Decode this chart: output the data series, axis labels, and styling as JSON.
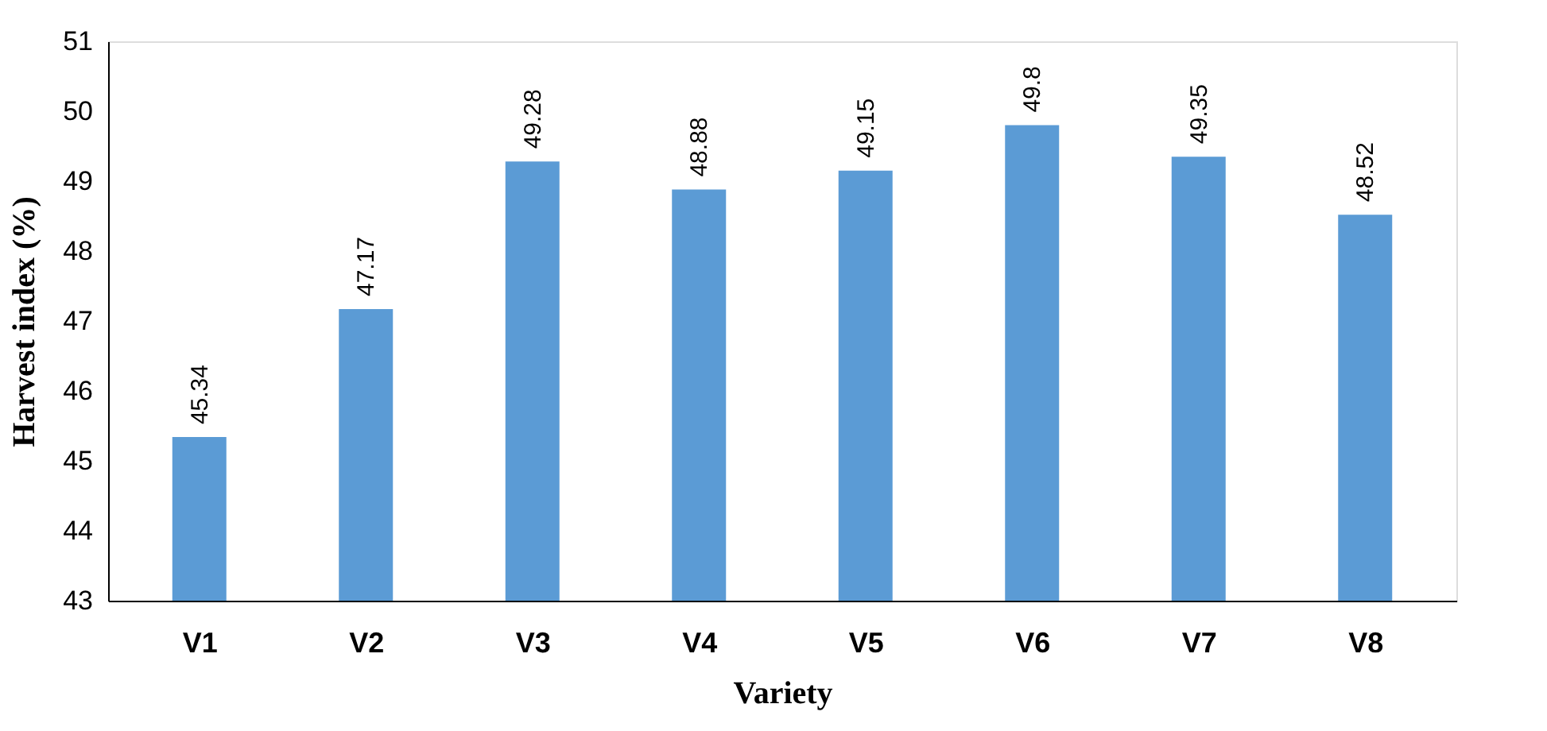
{
  "chart_data": {
    "type": "bar",
    "xlabel": "Variety",
    "ylabel": "Harvest index (%)",
    "categories": [
      "V1",
      "V2",
      "V3",
      "V4",
      "V5",
      "V6",
      "V7",
      "V8"
    ],
    "values": [
      45.34,
      47.17,
      49.28,
      48.88,
      49.15,
      49.8,
      49.35,
      48.52
    ],
    "color": "#5b9bd5",
    "ylim": [
      43,
      51
    ],
    "yticks": [
      43,
      44,
      45,
      46,
      47,
      48,
      49,
      50,
      51
    ],
    "grid": false,
    "data_labels": true
  }
}
